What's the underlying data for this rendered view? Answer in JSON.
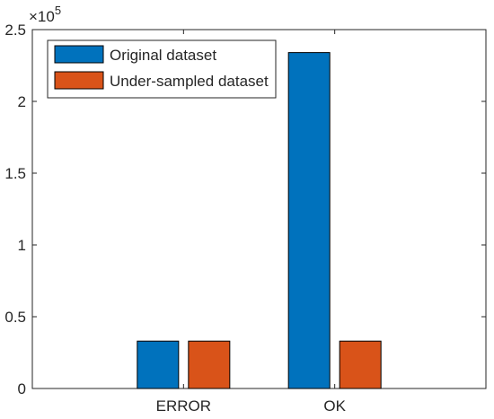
{
  "chart_data": {
    "type": "bar",
    "categories": [
      "ERROR",
      "OK"
    ],
    "series": [
      {
        "name": "Original dataset",
        "color": "#0072BD",
        "values": [
          33000,
          234000
        ]
      },
      {
        "name": "Under-sampled dataset",
        "color": "#D95319",
        "values": [
          33000,
          33000
        ]
      }
    ],
    "ylim": [
      0,
      250000
    ],
    "yticks": [
      0,
      50000,
      100000,
      150000,
      200000,
      250000
    ],
    "ytick_labels": [
      "0",
      "0.5",
      "1",
      "1.5",
      "2",
      "2.5"
    ],
    "exponent": {
      "base": "×10",
      "power": "5"
    },
    "grid": false,
    "legend_position": "top-left"
  }
}
